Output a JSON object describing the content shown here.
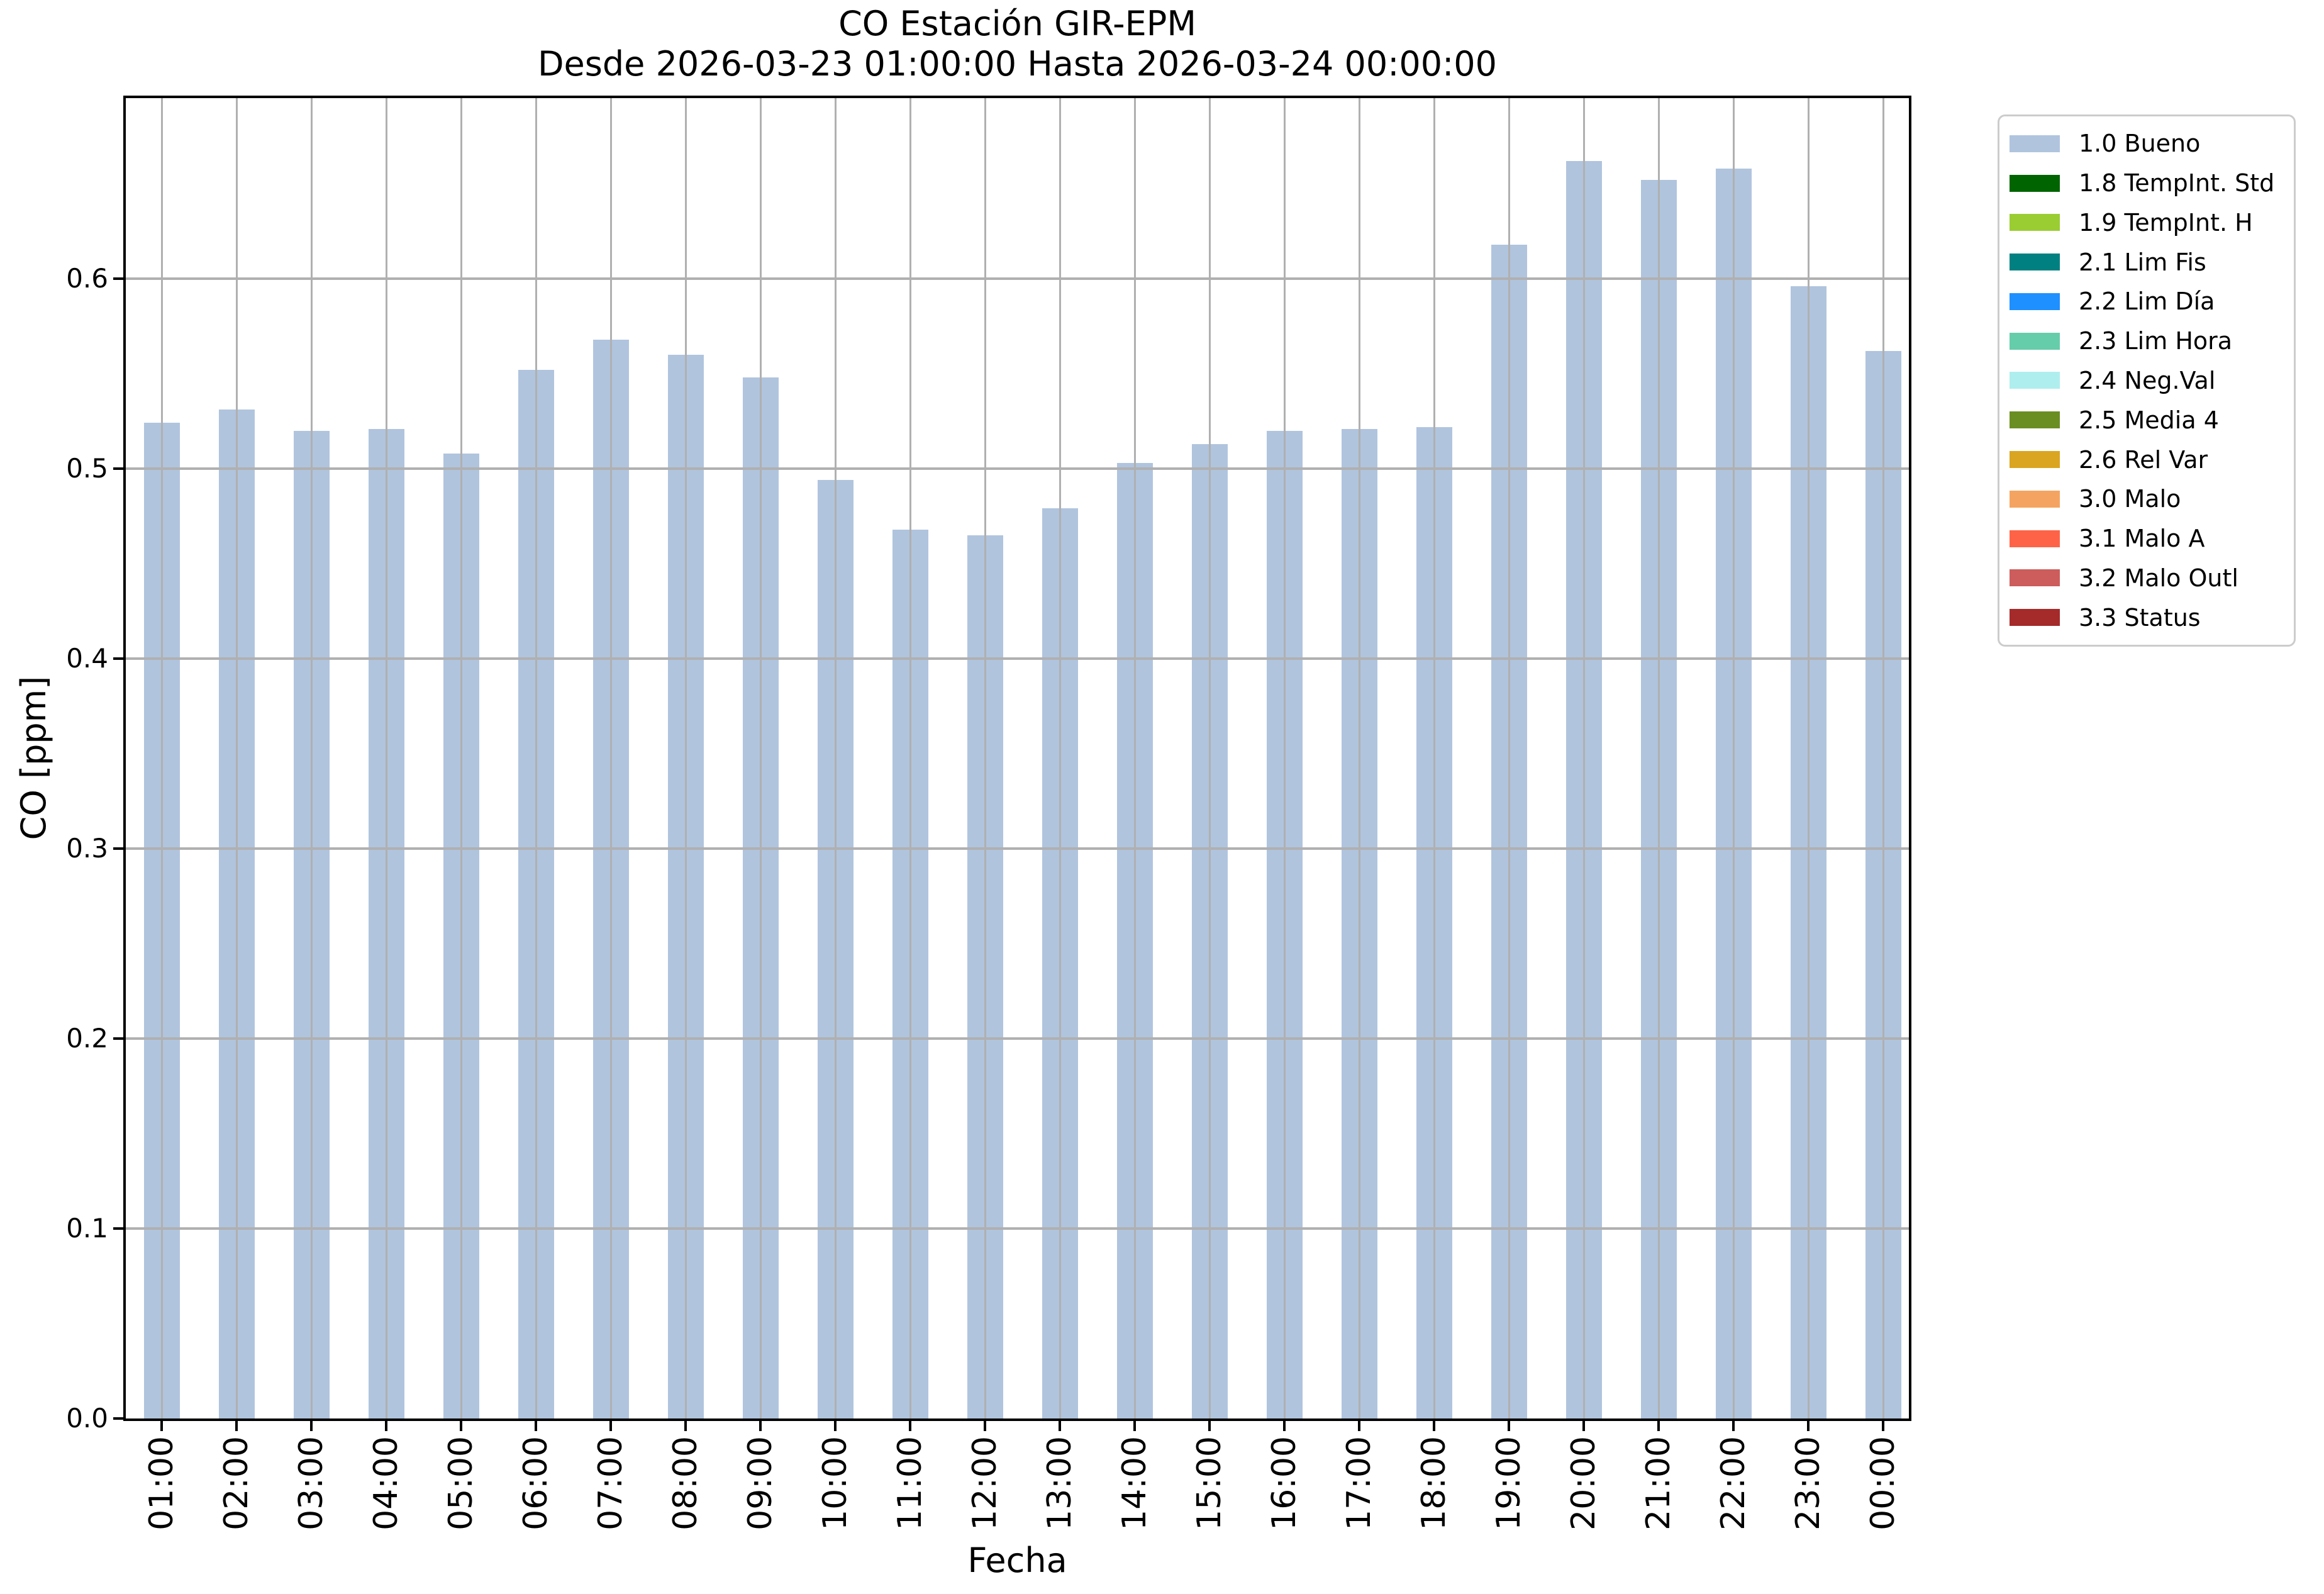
{
  "chart_data": {
    "type": "bar",
    "title": "CO Estación GIR-EPM",
    "subtitle": "Desde 2026-03-23 01:00:00 Hasta 2026-03-24 00:00:00",
    "xlabel": "Fecha",
    "ylabel": "CO [ppm]",
    "ylim": [
      0,
      0.695
    ],
    "yticks": [
      "0.0",
      "0.1",
      "0.2",
      "0.3",
      "0.4",
      "0.5",
      "0.6"
    ],
    "grid": true,
    "grid_color": "#b0b0b0",
    "axis_color": "#000000",
    "bar_color": "#B0C4DE",
    "series_name": "1.0 Bueno",
    "categories": [
      "01:00",
      "02:00",
      "03:00",
      "04:00",
      "05:00",
      "06:00",
      "07:00",
      "08:00",
      "09:00",
      "10:00",
      "11:00",
      "12:00",
      "13:00",
      "14:00",
      "15:00",
      "16:00",
      "17:00",
      "18:00",
      "19:00",
      "20:00",
      "21:00",
      "22:00",
      "23:00",
      "00:00"
    ],
    "values": [
      0.524,
      0.531,
      0.52,
      0.521,
      0.508,
      0.552,
      0.568,
      0.56,
      0.548,
      0.494,
      0.468,
      0.465,
      0.479,
      0.503,
      0.513,
      0.52,
      0.521,
      0.522,
      0.618,
      0.662,
      0.652,
      0.658,
      0.596,
      0.562
    ],
    "legend": {
      "position": "upper-right-outside",
      "entries": [
        {
          "label": "1.0 Bueno",
          "color": "#B0C4DE"
        },
        {
          "label": "1.8 TempInt. Std",
          "color": "#006400"
        },
        {
          "label": "1.9 TempInt. H",
          "color": "#9ACD32"
        },
        {
          "label": "2.1 Lim Fis",
          "color": "#008080"
        },
        {
          "label": "2.2 Lim Día",
          "color": "#1E90FF"
        },
        {
          "label": "2.3 Lim Hora",
          "color": "#66CDAA"
        },
        {
          "label": "2.4 Neg.Val",
          "color": "#AFEEEE"
        },
        {
          "label": "2.5 Media 4",
          "color": "#6B8E23"
        },
        {
          "label": "2.6 Rel Var",
          "color": "#DAA520"
        },
        {
          "label": "3.0 Malo",
          "color": "#F4A460"
        },
        {
          "label": "3.1 Malo A",
          "color": "#FF6347"
        },
        {
          "label": "3.2 Malo Outl",
          "color": "#CD5C5C"
        },
        {
          "label": "3.3 Status",
          "color": "#A52A2A"
        }
      ]
    }
  }
}
